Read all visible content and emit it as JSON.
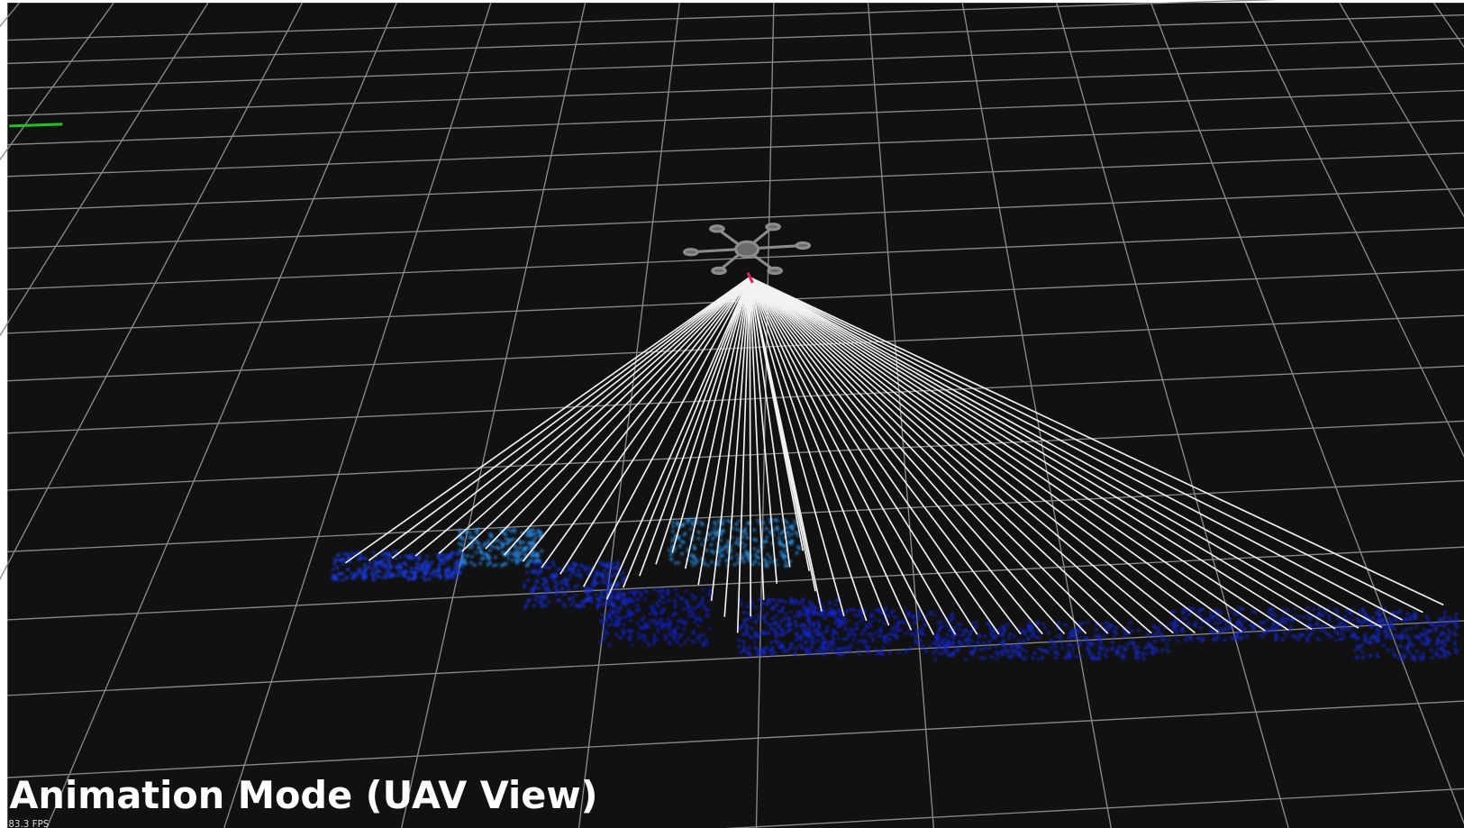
{
  "overlay": {
    "title": "Animation Mode (UAV View)",
    "fps": "83.3 FPS"
  }
}
